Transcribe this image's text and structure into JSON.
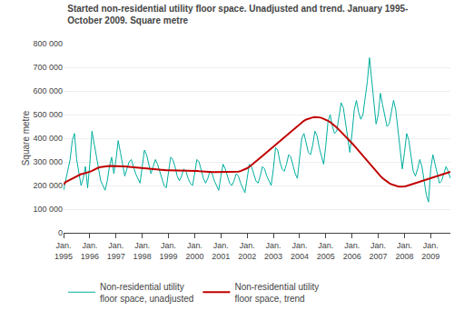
{
  "chart_data": {
    "type": "line",
    "title": "Started non-residential utility floor space. Unadjusted and trend. January 1995-\nOctober 2009. Square metre",
    "ylabel": "Square metre",
    "categories": [
      "Jan.\n1995",
      null,
      null,
      null,
      null,
      null,
      null,
      null,
      null,
      null,
      null,
      null,
      "Jan.\n1996",
      null,
      null,
      null,
      null,
      null,
      null,
      null,
      null,
      null,
      null,
      null,
      "Jan.\n1997",
      null,
      null,
      null,
      null,
      null,
      null,
      null,
      null,
      null,
      null,
      null,
      "Jan.\n1998",
      null,
      null,
      null,
      null,
      null,
      null,
      null,
      null,
      null,
      null,
      null,
      "Jan.\n1999",
      null,
      null,
      null,
      null,
      null,
      null,
      null,
      null,
      null,
      null,
      null,
      "Jan.\n2000",
      null,
      null,
      null,
      null,
      null,
      null,
      null,
      null,
      null,
      null,
      null,
      "Jan.\n2001",
      null,
      null,
      null,
      null,
      null,
      null,
      null,
      null,
      null,
      null,
      null,
      "Jan.\n2002",
      null,
      null,
      null,
      null,
      null,
      null,
      null,
      null,
      null,
      null,
      null,
      "Jan.\n2003",
      null,
      null,
      null,
      null,
      null,
      null,
      null,
      null,
      null,
      null,
      null,
      "Jan.\n2004",
      null,
      null,
      null,
      null,
      null,
      null,
      null,
      null,
      null,
      null,
      null,
      "Jan.\n2005",
      null,
      null,
      null,
      null,
      null,
      null,
      null,
      null,
      null,
      null,
      null,
      "Jan.\n2006",
      null,
      null,
      null,
      null,
      null,
      null,
      null,
      null,
      null,
      null,
      null,
      "Jan.\n2007",
      null,
      null,
      null,
      null,
      null,
      null,
      null,
      null,
      null,
      null,
      null,
      "Jan.\n2008",
      null,
      null,
      null,
      null,
      null,
      null,
      null,
      null,
      null,
      null,
      null,
      "Jan.\n2009",
      null,
      null,
      null,
      null,
      null,
      null,
      null,
      null,
      null
    ],
    "series": [
      {
        "name": "Non-residential utility\nfloor space, unadjusted",
        "color": "#00AFA0",
        "values": [
          180000,
          220000,
          260000,
          310000,
          390000,
          420000,
          310000,
          250000,
          200000,
          230000,
          280000,
          190000,
          290000,
          430000,
          380000,
          320000,
          270000,
          220000,
          200000,
          180000,
          220000,
          280000,
          320000,
          250000,
          310000,
          390000,
          340000,
          290000,
          240000,
          270000,
          300000,
          310000,
          280000,
          250000,
          230000,
          210000,
          280000,
          350000,
          330000,
          290000,
          250000,
          280000,
          310000,
          290000,
          260000,
          230000,
          200000,
          190000,
          260000,
          320000,
          310000,
          280000,
          240000,
          220000,
          240000,
          270000,
          260000,
          230000,
          210000,
          200000,
          250000,
          310000,
          300000,
          260000,
          230000,
          210000,
          230000,
          260000,
          250000,
          220000,
          200000,
          180000,
          240000,
          290000,
          270000,
          240000,
          210000,
          200000,
          220000,
          250000,
          240000,
          210000,
          190000,
          170000,
          230000,
          290000,
          280000,
          250000,
          220000,
          210000,
          240000,
          280000,
          270000,
          240000,
          220000,
          200000,
          270000,
          360000,
          350000,
          300000,
          270000,
          260000,
          290000,
          330000,
          320000,
          280000,
          250000,
          230000,
          310000,
          400000,
          420000,
          380000,
          340000,
          330000,
          370000,
          430000,
          410000,
          360000,
          320000,
          290000,
          370000,
          470000,
          500000,
          450000,
          420000,
          430000,
          490000,
          550000,
          530000,
          460000,
          390000,
          340000,
          420000,
          520000,
          560000,
          510000,
          480000,
          500000,
          570000,
          640000,
          740000,
          650000,
          540000,
          460000,
          500000,
          590000,
          540000,
          490000,
          450000,
          460000,
          510000,
          560000,
          520000,
          430000,
          350000,
          270000,
          340000,
          420000,
          390000,
          320000,
          260000,
          240000,
          270000,
          310000,
          280000,
          220000,
          160000,
          130000,
          270000,
          330000,
          290000,
          250000,
          210000,
          220000,
          250000,
          280000,
          260000,
          230000
        ]
      },
      {
        "name": "Non-residential utility\nfloor space, trend",
        "color": "#C00000",
        "values": [
          205000,
          215000,
          220000,
          225000,
          228000,
          232000,
          238000,
          245000,
          248000,
          250000,
          252000,
          255000,
          258000,
          262000,
          267000,
          272000,
          276000,
          278000,
          280000,
          281000,
          282000,
          283000,
          283000,
          283000,
          283000,
          283000,
          283000,
          282000,
          281000,
          280000,
          279000,
          278000,
          277000,
          276000,
          275000,
          274000,
          273000,
          272000,
          271000,
          270000,
          269000,
          268000,
          267000,
          266000,
          265000,
          264000,
          264000,
          264000,
          264000,
          264000,
          264000,
          264000,
          264000,
          264000,
          264000,
          264000,
          264000,
          264000,
          264000,
          264000,
          263000,
          262000,
          261000,
          260000,
          259000,
          258000,
          257000,
          257000,
          257000,
          257000,
          257000,
          257000,
          257000,
          257000,
          257000,
          257000,
          257000,
          257000,
          257000,
          258000,
          259000,
          261000,
          264000,
          268000,
          273000,
          279000,
          286000,
          293000,
          301000,
          309000,
          317000,
          325000,
          333000,
          341000,
          349000,
          357000,
          365000,
          373000,
          381000,
          389000,
          397000,
          405000,
          413000,
          421000,
          429000,
          437000,
          445000,
          453000,
          461000,
          468000,
          474000,
          479000,
          483000,
          486000,
          488000,
          489000,
          489000,
          488000,
          486000,
          483000,
          479000,
          474000,
          468000,
          461000,
          453000,
          445000,
          436000,
          427000,
          418000,
          409000,
          399000,
          389000,
          379000,
          369000,
          358000,
          348000,
          337000,
          326000,
          315000,
          304000,
          293000,
          282000,
          271000,
          260000,
          250000,
          240000,
          231000,
          223000,
          216000,
          210000,
          205000,
          201000,
          198000,
          196000,
          195000,
          195000,
          196000,
          198000,
          201000,
          204000,
          207000,
          210000,
          213000,
          216000,
          219000,
          222000,
          225000,
          228000,
          231000,
          234000,
          237000,
          240000,
          243000,
          246000,
          249000,
          252000,
          255000,
          258000
        ]
      }
    ],
    "ylim": [
      0,
      800000
    ],
    "yticks": [
      0,
      {
        "value": 100000,
        "label": "100 000"
      },
      {
        "value": 200000,
        "label": "200 000"
      },
      {
        "value": 300000,
        "label": "300 000"
      },
      {
        "value": 400000,
        "label": "400 000"
      },
      {
        "value": 500000,
        "label": "500 000"
      },
      {
        "value": 600000,
        "label": "600 000"
      },
      {
        "value": 700000,
        "label": "700 000"
      },
      {
        "value": 800000,
        "label": "800 000"
      }
    ],
    "grid": true,
    "legend": "bottom"
  }
}
